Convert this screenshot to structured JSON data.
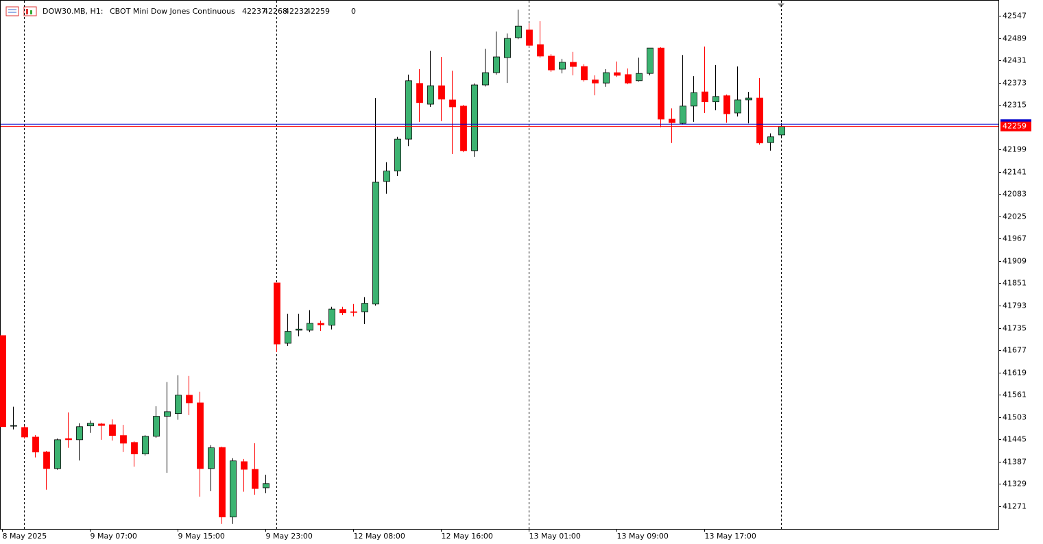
{
  "chart_data": {
    "type": "candlestick",
    "symbol": "DOW30.MB, H1:",
    "description": "CBOT Mini Dow Jones Continuous",
    "spread": 0,
    "categories": [
      "8 May 2025",
      null,
      null,
      null,
      null,
      null,
      null,
      null,
      "9 May 07:00",
      null,
      null,
      null,
      null,
      null,
      null,
      null,
      "9 May 15:00",
      null,
      null,
      null,
      null,
      null,
      null,
      null,
      "9 May 23:00",
      null,
      null,
      null,
      null,
      null,
      null,
      null,
      "12 May 08:00",
      null,
      null,
      null,
      null,
      null,
      null,
      null,
      "12 May 16:00",
      null,
      null,
      null,
      null,
      null,
      null,
      null,
      "13 May 01:00",
      null,
      null,
      null,
      null,
      null,
      null,
      null,
      "13 May 09:00",
      null,
      null,
      null,
      null,
      null,
      null,
      null,
      "13 May 17:00",
      null,
      null,
      null,
      null,
      null,
      null,
      null
    ],
    "open": [
      41715,
      41480,
      41476,
      41451,
      41412,
      41369,
      41447,
      41444,
      41480,
      41485,
      41483,
      41455,
      41437,
      41407,
      41453,
      41505,
      41512,
      41560,
      41540,
      41369,
      41424,
      41243,
      41387,
      41367,
      41319,
      41852,
      41695,
      41729,
      41729,
      41747,
      41742,
      41783,
      41777,
      41777,
      41797,
      42116,
      42143,
      42226,
      42371,
      42317,
      42365,
      42328,
      42312,
      42196,
      42367,
      42399,
      42438,
      42490,
      42510,
      42472,
      42442,
      42408,
      42426,
      42415,
      42380,
      42372,
      42399,
      42394,
      42378,
      42397,
      42463,
      42278,
      42267,
      42312,
      42349,
      42323,
      42339,
      42294,
      42328,
      42333,
      42217,
      42237
    ],
    "high": [
      41715,
      41530,
      41480,
      41456,
      41415,
      41447,
      41515,
      41487,
      41494,
      41488,
      41497,
      41483,
      41440,
      41456,
      41531,
      41594,
      41612,
      41610,
      41569,
      41430,
      41426,
      41396,
      41394,
      41435,
      41353,
      41852,
      41772,
      41772,
      41781,
      41754,
      41790,
      41790,
      41797,
      41815,
      42333,
      42166,
      42232,
      42394,
      42408,
      42456,
      42440,
      42404,
      42315,
      42371,
      42461,
      42506,
      42501,
      42563,
      42527,
      42533,
      42447,
      42435,
      42453,
      42421,
      42392,
      42408,
      42428,
      42410,
      42438,
      42463,
      42465,
      42306,
      42445,
      42390,
      42467,
      42419,
      42342,
      42415,
      42349,
      42385,
      42241,
      42268
    ],
    "low": [
      41478,
      41471,
      41447,
      41398,
      41314,
      41366,
      41423,
      41390,
      41462,
      41444,
      41442,
      41412,
      41374,
      41403,
      41449,
      41358,
      41496,
      41508,
      41296,
      41310,
      41225,
      41225,
      41309,
      41301,
      41305,
      41672,
      41688,
      41713,
      41724,
      41727,
      41731,
      41768,
      41765,
      41745,
      41793,
      42084,
      42130,
      42208,
      42271,
      42310,
      42273,
      42187,
      42192,
      42180,
      42363,
      42394,
      42372,
      42486,
      42467,
      42438,
      42401,
      42397,
      42392,
      42376,
      42340,
      42362,
      42388,
      42369,
      42376,
      42392,
      42257,
      42216,
      42264,
      42271,
      42294,
      42301,
      42269,
      42285,
      42267,
      42212,
      42196,
      42232
    ],
    "close": [
      41478,
      41481,
      41451,
      41412,
      41369,
      41444,
      41444,
      41478,
      41487,
      41481,
      41455,
      41435,
      41407,
      41453,
      41505,
      41517,
      41560,
      41540,
      41369,
      41423,
      41243,
      41389,
      41367,
      41317,
      41330,
      41693,
      41726,
      41732,
      41747,
      41743,
      41784,
      41774,
      41775,
      41799,
      42114,
      42143,
      42226,
      42378,
      42321,
      42365,
      42330,
      42310,
      42196,
      42367,
      42399,
      42440,
      42488,
      42520,
      42470,
      42442,
      42406,
      42426,
      42415,
      42380,
      42372,
      42399,
      42392,
      42372,
      42397,
      42463,
      42278,
      42269,
      42312,
      42347,
      42323,
      42337,
      42292,
      42328,
      42333,
      42216,
      42232,
      42259
    ],
    "up_color": "#3cb371",
    "down_color": "#ff0000",
    "bid_line": {
      "value": 42259,
      "color": "#ff0000"
    },
    "ask_line": {
      "value": 42265,
      "color": "#0000cc"
    },
    "ylim": [
      41212,
      42588
    ],
    "yticks": [
      42547,
      42489,
      42431,
      42373,
      42315,
      42199,
      42141,
      42083,
      42025,
      41967,
      41909,
      41851,
      41793,
      41735,
      41677,
      41619,
      41561,
      41503,
      41445,
      41387,
      41329,
      41271
    ]
  }
}
